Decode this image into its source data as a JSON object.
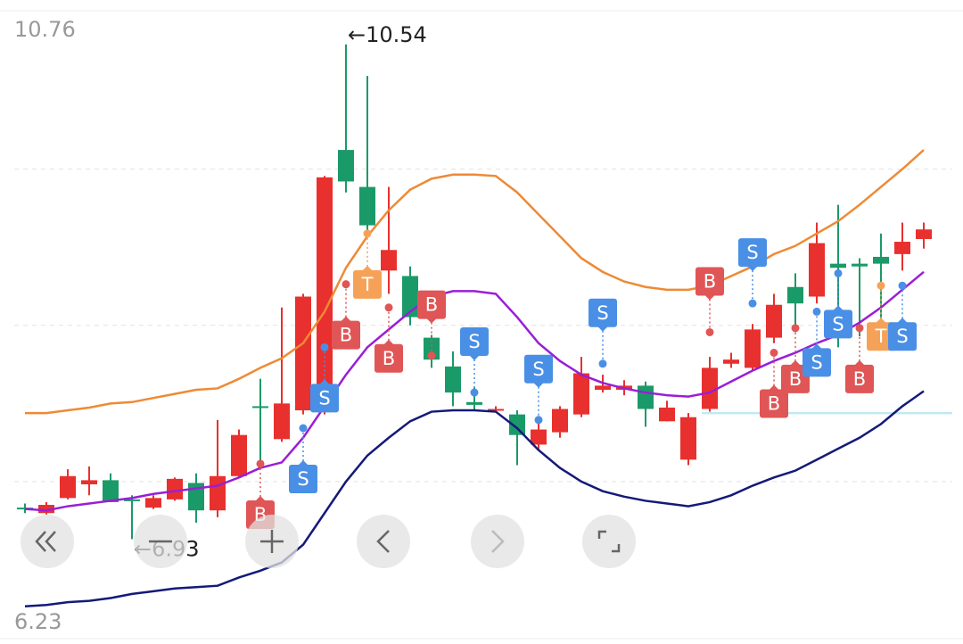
{
  "chart_data": {
    "type": "candlestick",
    "ylim": [
      6.23,
      10.76
    ],
    "axis_labels": [
      10.76,
      6.23
    ],
    "grid_lines": [
      9.63,
      8.49,
      7.35
    ],
    "up_color": "#e8302e",
    "down_color": "#1a9a68",
    "open": [
      7.16,
      7.12,
      7.23,
      7.33,
      7.36,
      7.22,
      7.16,
      7.22,
      7.34,
      7.14,
      7.39,
      7.9,
      7.66,
      7.87,
      7.87,
      9.77,
      9.5,
      8.89,
      8.85,
      8.4,
      8.19,
      7.93,
      7.87,
      7.84,
      7.62,
      7.71,
      7.84,
      8.02,
      8.02,
      8.05,
      7.79,
      7.51,
      7.88,
      8.21,
      8.18,
      8.4,
      8.77,
      8.7,
      8.94,
      8.94,
      8.99,
      9.01,
      9.12
    ],
    "close": [
      7.15,
      7.18,
      7.39,
      7.36,
      7.2,
      7.22,
      7.23,
      7.37,
      7.14,
      7.39,
      7.69,
      7.9,
      7.92,
      8.7,
      9.57,
      9.54,
      9.22,
      9.04,
      8.55,
      8.24,
      8.0,
      7.91,
      7.88,
      7.69,
      7.73,
      7.88,
      8.14,
      8.05,
      8.05,
      7.88,
      7.89,
      7.82,
      8.18,
      8.24,
      8.46,
      8.64,
      8.65,
      9.09,
      8.91,
      8.92,
      8.94,
      9.1,
      9.19
    ],
    "high": [
      7.19,
      7.2,
      7.44,
      7.46,
      7.41,
      7.25,
      7.25,
      7.38,
      7.41,
      7.8,
      7.73,
      8.1,
      8.62,
      8.72,
      9.58,
      10.54,
      10.31,
      9.5,
      8.92,
      8.42,
      8.3,
      8.04,
      7.9,
      7.87,
      7.81,
      7.9,
      8.26,
      8.13,
      8.09,
      8.08,
      7.94,
      7.85,
      8.26,
      8.29,
      8.5,
      8.72,
      8.87,
      9.24,
      9.37,
      8.98,
      9.16,
      9.24,
      9.24
    ],
    "low": [
      7.12,
      7.11,
      7.22,
      7.25,
      7.2,
      6.93,
      7.15,
      7.21,
      7.05,
      7.09,
      7.38,
      7.48,
      7.64,
      7.84,
      7.84,
      9.46,
      9.14,
      8.72,
      8.49,
      8.18,
      7.9,
      7.87,
      7.86,
      7.47,
      7.58,
      7.67,
      7.82,
      8.0,
      7.98,
      7.75,
      7.79,
      7.47,
      7.86,
      8.18,
      8.16,
      8.36,
      8.44,
      8.65,
      8.33,
      8.41,
      8.33,
      8.89,
      9.05
    ],
    "bands": [
      {
        "name": "upper",
        "color": "#ee8a35",
        "values": [
          7.85,
          7.85,
          7.87,
          7.89,
          7.92,
          7.93,
          7.96,
          7.99,
          8.02,
          8.03,
          8.1,
          8.18,
          8.25,
          8.36,
          8.59,
          8.91,
          9.14,
          9.33,
          9.48,
          9.56,
          9.59,
          9.59,
          9.58,
          9.46,
          9.3,
          9.14,
          8.98,
          8.88,
          8.81,
          8.77,
          8.75,
          8.75,
          8.78,
          8.85,
          8.92,
          9.01,
          9.07,
          9.16,
          9.25,
          9.37,
          9.5,
          9.63,
          9.77
        ]
      },
      {
        "name": "middle",
        "color": "#9a1ed6",
        "values": [
          7.15,
          7.14,
          7.17,
          7.19,
          7.21,
          7.23,
          7.26,
          7.28,
          7.3,
          7.32,
          7.38,
          7.45,
          7.49,
          7.67,
          7.9,
          8.13,
          8.33,
          8.46,
          8.59,
          8.7,
          8.74,
          8.74,
          8.72,
          8.55,
          8.36,
          8.23,
          8.13,
          8.07,
          8.03,
          8.0,
          7.98,
          7.97,
          8.0,
          8.08,
          8.16,
          8.23,
          8.29,
          8.36,
          8.42,
          8.51,
          8.62,
          8.75,
          8.88
        ]
      },
      {
        "name": "lower",
        "color": "#141a78",
        "values": [
          6.44,
          6.45,
          6.47,
          6.48,
          6.5,
          6.53,
          6.55,
          6.57,
          6.58,
          6.59,
          6.65,
          6.7,
          6.76,
          6.89,
          7.12,
          7.35,
          7.54,
          7.67,
          7.79,
          7.86,
          7.87,
          7.87,
          7.86,
          7.74,
          7.58,
          7.45,
          7.35,
          7.28,
          7.24,
          7.21,
          7.19,
          7.17,
          7.2,
          7.25,
          7.32,
          7.38,
          7.43,
          7.51,
          7.59,
          7.67,
          7.77,
          7.9,
          8.01
        ]
      }
    ],
    "support_line": {
      "value": 7.85,
      "from_index": 32,
      "color": "#bfe9f2"
    },
    "signals": [
      {
        "index": 11,
        "label": "B",
        "value": 7.48,
        "side": "below"
      },
      {
        "index": 13,
        "label": "S",
        "value": 7.74,
        "side": "below"
      },
      {
        "index": 14,
        "label": "S",
        "value": 8.33,
        "side": "below"
      },
      {
        "index": 15,
        "label": "B",
        "value": 8.79,
        "side": "below"
      },
      {
        "index": 16,
        "label": "T",
        "value": 9.16,
        "side": "below"
      },
      {
        "index": 17,
        "label": "B",
        "value": 8.62,
        "side": "below"
      },
      {
        "index": 19,
        "label": "B",
        "value": 8.27,
        "side": "above"
      },
      {
        "index": 21,
        "label": "S",
        "value": 8.0,
        "side": "above"
      },
      {
        "index": 24,
        "label": "S",
        "value": 7.8,
        "side": "above"
      },
      {
        "index": 27,
        "label": "S",
        "value": 8.21,
        "side": "above"
      },
      {
        "index": 32,
        "label": "B",
        "value": 8.44,
        "side": "above"
      },
      {
        "index": 34,
        "label": "S",
        "value": 8.65,
        "side": "above"
      },
      {
        "index": 35,
        "label": "B",
        "value": 8.29,
        "side": "below"
      },
      {
        "index": 36,
        "label": "B",
        "value": 8.47,
        "side": "below"
      },
      {
        "index": 37,
        "label": "S",
        "value": 8.59,
        "side": "below"
      },
      {
        "index": 38,
        "label": "S",
        "value": 8.87,
        "side": "below"
      },
      {
        "index": 39,
        "label": "B",
        "value": 8.47,
        "side": "below"
      },
      {
        "index": 40,
        "label": "T",
        "value": 8.78,
        "side": "below"
      },
      {
        "index": 41,
        "label": "S",
        "value": 8.78,
        "side": "below"
      }
    ],
    "signal_colors": {
      "B": "#e05555",
      "S": "#4a8fe6",
      "T": "#f5a258"
    },
    "annotations": [
      {
        "text": "←10.54",
        "index": 15,
        "value": 10.54
      },
      {
        "text": "←6.93",
        "index": 5,
        "value": 6.93
      }
    ]
  }
}
